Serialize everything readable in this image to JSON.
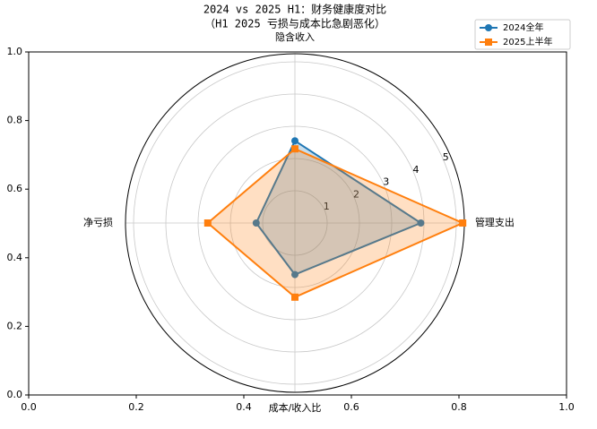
{
  "chart_data": {
    "type": "radar",
    "title": "2024 vs 2025 H1：财务健康度对比",
    "subtitle": "（H1 2025 亏损与成本比急剧恶化）",
    "categories": [
      "隐含收入",
      "管理支出",
      "成本/收入比",
      "净亏损"
    ],
    "series": [
      {
        "name": "2024全年",
        "color": "#1f77b4",
        "marker": "circle",
        "values": [
          2.55,
          3.9,
          1.6,
          1.2
        ]
      },
      {
        "name": "2025上半年",
        "color": "#ff7f0e",
        "marker": "square",
        "values": [
          2.3,
          5.2,
          2.3,
          2.7
        ]
      }
    ],
    "rlim": [
      0,
      5.25
    ],
    "rticks": [
      1,
      2,
      3,
      4,
      5
    ],
    "xlim": [
      0,
      1
    ],
    "ylim": [
      0,
      1
    ],
    "xticks": [
      {
        "value": 0,
        "label": "0.0"
      },
      {
        "value": 0.2,
        "label": "0.2"
      },
      {
        "value": 0.4,
        "label": "0.4"
      },
      {
        "value": 0.6,
        "label": "0.6"
      },
      {
        "value": 0.8,
        "label": "0.8"
      },
      {
        "value": 1,
        "label": "1.0"
      }
    ],
    "yticks": [
      {
        "value": 0,
        "label": "0.0"
      },
      {
        "value": 0.2,
        "label": "0.2"
      },
      {
        "value": 0.4,
        "label": "0.4"
      },
      {
        "value": 0.6,
        "label": "0.6"
      },
      {
        "value": 0.8,
        "label": "0.8"
      },
      {
        "value": 1,
        "label": "1.0"
      }
    ],
    "legend": "upper right"
  }
}
